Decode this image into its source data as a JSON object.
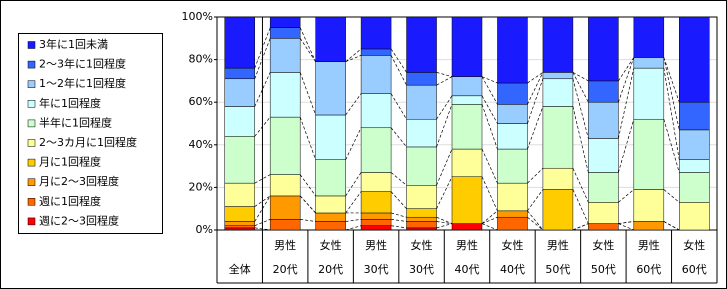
{
  "chart_data": {
    "type": "stacked-bar",
    "categories": [
      [
        "全体"
      ],
      [
        "男性",
        "20代"
      ],
      [
        "女性",
        "20代"
      ],
      [
        "男性",
        "30代"
      ],
      [
        "女性",
        "30代"
      ],
      [
        "男性",
        "40代"
      ],
      [
        "女性",
        "40代"
      ],
      [
        "男性",
        "50代"
      ],
      [
        "女性",
        "50代"
      ],
      [
        "男性",
        "60代"
      ],
      [
        "女性",
        "60代"
      ]
    ],
    "series": [
      {
        "name": "3年に1回未満",
        "color": "#1a1aff",
        "values": [
          24,
          5,
          21,
          15,
          26,
          28,
          31,
          26,
          30,
          19,
          40
        ]
      },
      {
        "name": "2～3年に1回程度",
        "color": "#3366ff",
        "values": [
          5,
          5,
          0,
          3,
          6,
          0,
          10,
          0,
          10,
          0,
          13
        ]
      },
      {
        "name": "1～2年に1回程度",
        "color": "#99ccff",
        "values": [
          13,
          16,
          25,
          18,
          16,
          9,
          9,
          3,
          17,
          5,
          14
        ]
      },
      {
        "name": "年に1回程度",
        "color": "#ccffff",
        "values": [
          14,
          21,
          21,
          16,
          13,
          4,
          12,
          13,
          16,
          24,
          6
        ]
      },
      {
        "name": "半年に1回程度",
        "color": "#ccffcc",
        "values": [
          22,
          27,
          17,
          21,
          18,
          21,
          16,
          29,
          14,
          33,
          14
        ]
      },
      {
        "name": "2～3カ月に1回程度",
        "color": "#ffff99",
        "values": [
          11,
          10,
          8,
          9,
          11,
          13,
          13,
          10,
          10,
          15,
          13
        ]
      },
      {
        "name": "月に1回程度",
        "color": "#ffcc00",
        "values": [
          7,
          0,
          0,
          10,
          4,
          22,
          0,
          19,
          0,
          0,
          0
        ]
      },
      {
        "name": "月に2～3回程度",
        "color": "#ff9900",
        "values": [
          2,
          11,
          4,
          3,
          2,
          0,
          3,
          0,
          0,
          4,
          0
        ]
      },
      {
        "name": "週に1回程度",
        "color": "#ff6600",
        "values": [
          1,
          5,
          4,
          3,
          3,
          0,
          6,
          0,
          3,
          0,
          0
        ]
      },
      {
        "name": "週に2～3回程度",
        "color": "#ff0000",
        "values": [
          1,
          0,
          0,
          2,
          1,
          3,
          0,
          0,
          0,
          0,
          0
        ]
      }
    ],
    "ylim": [
      0,
      100
    ],
    "yticks": [
      {
        "value": 0,
        "label": "0%"
      },
      {
        "value": 20,
        "label": "20%"
      },
      {
        "value": 40,
        "label": "40%"
      },
      {
        "value": 60,
        "label": "60%"
      },
      {
        "value": 80,
        "label": "80%"
      },
      {
        "value": 100,
        "label": "100%"
      }
    ],
    "grid": true
  }
}
